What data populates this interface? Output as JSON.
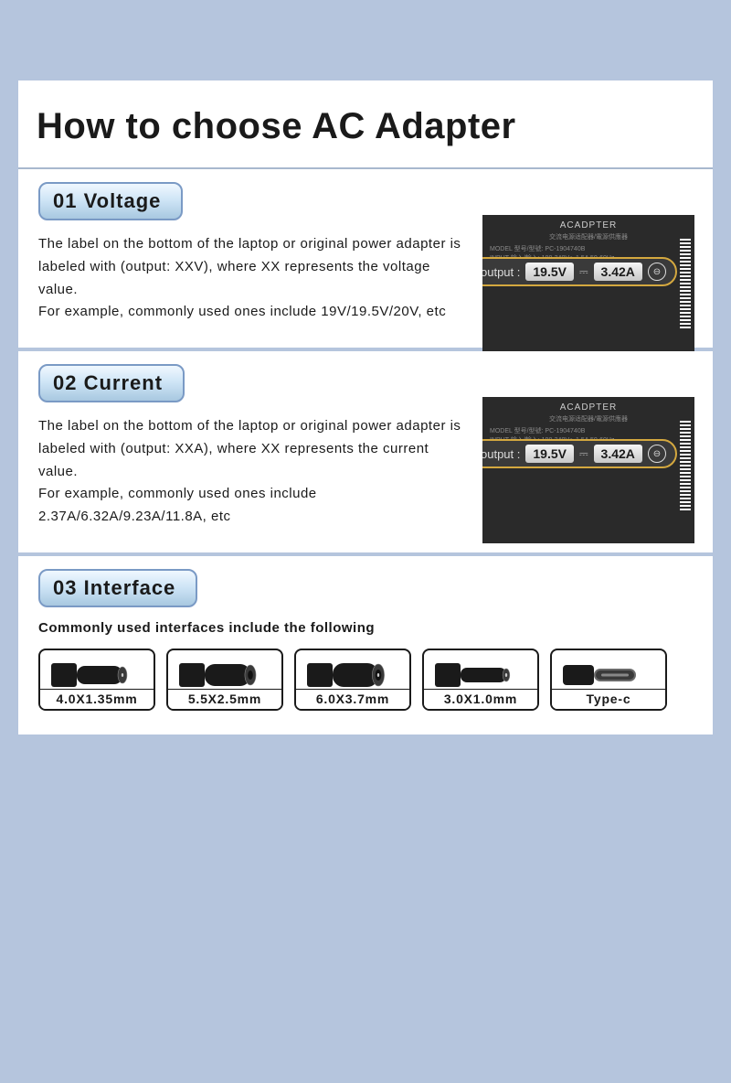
{
  "colors": {
    "page_bg": "#b5c5dd",
    "panel_bg": "#ffffff",
    "text": "#1a1a1a",
    "tab_border": "#7a9ac5",
    "tab_grad_top": "#f0f8ff",
    "tab_grad_mid": "#cce3f5",
    "tab_grad_bot": "#a8c8e0",
    "adapter_bg": "#2a2a2a",
    "badge_border": "#d4a83f",
    "divider": "#a8b8ce"
  },
  "title": "How to choose AC Adapter",
  "sections": [
    {
      "tab": "01 Voltage",
      "text": "The label on the bottom of the laptop or original power adapter is labeled with (output: XXV), where XX represents  the voltage value.\nFor example, commonly used ones include 19V/19.5V/20V, etc",
      "adapter": {
        "title": "ACADPTER",
        "model": "MODEL 型号/型號: PC-1904740B",
        "lines": [
          "INPUT 输入/輸入: 100-240V～1.5A 50-60Hz",
          "OUTPUT 输出/輸出: 19V⎓4.74A"
        ],
        "output_label": "output :",
        "voltage": "19.5V",
        "current": "3.42A"
      }
    },
    {
      "tab": "02 Current",
      "text": "The label on the bottom of the laptop or original power adapter is labeled with (output: XXA), where XX represents the current value.\nFor example, commonly used ones include 2.37A/6.32A/9.23A/11.8A, etc",
      "adapter": {
        "title": "ACADPTER",
        "model": "MODEL 型号/型號: PC-1904740B",
        "lines": [
          "INPUT 输入/輸入: 100-240V～1.5A 50-60Hz",
          "OUTPUT 输出/輸出: 19V⎓4.74A"
        ],
        "output_label": "output :",
        "voltage": "19.5V",
        "current": "3.42A"
      }
    },
    {
      "tab": "03 Interface",
      "intro": "Commonly used interfaces include the following",
      "connectors": [
        {
          "label": "4.0X1.35mm",
          "type": "barrel",
          "pin": true,
          "outer": 18,
          "inner": 4
        },
        {
          "label": "5.5X2.5mm",
          "type": "barrel",
          "pin": false,
          "outer": 22,
          "inner": 10
        },
        {
          "label": "6.0X3.7mm",
          "type": "barrel",
          "pin": true,
          "outer": 24,
          "inner": 12
        },
        {
          "label": "3.0X1.0mm",
          "type": "barrel",
          "pin": true,
          "outer": 14,
          "inner": 3
        },
        {
          "label": "Type-c",
          "type": "usbc"
        }
      ]
    }
  ]
}
